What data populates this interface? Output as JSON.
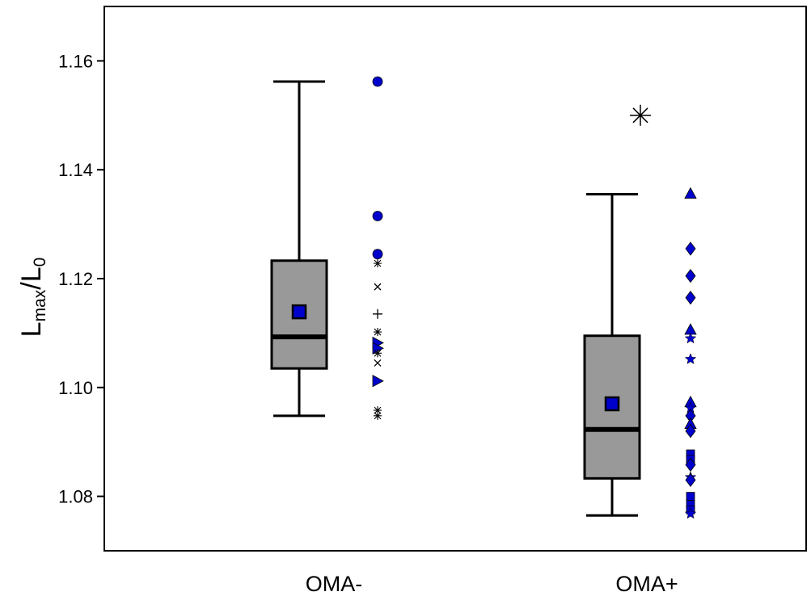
{
  "chart_data": {
    "type": "box",
    "ylabel": {
      "main": "L",
      "sub1": "max",
      "mid": "/L",
      "sub2": "0"
    },
    "ylim": [
      1.07,
      1.17
    ],
    "yticks": [
      1.08,
      1.1,
      1.12,
      1.14,
      1.16
    ],
    "ytick_labels": [
      "1.08",
      "1.10",
      "1.12",
      "1.14",
      "1.16"
    ],
    "grid": false,
    "legend": "none",
    "colors": {
      "box_fill": "#999999",
      "marker": "#0000cc",
      "line": "#000000"
    },
    "groups": [
      {
        "label": "OMA-",
        "whisker_low": 1.0948,
        "q1": 1.1035,
        "median": 1.1093,
        "q3": 1.1233,
        "whisker_high": 1.1562,
        "mean": 1.1139,
        "outliers": [],
        "points": [
          {
            "y": 1.1562,
            "marker": "circle"
          },
          {
            "y": 1.1315,
            "marker": "circle"
          },
          {
            "y": 1.1245,
            "marker": "circle"
          },
          {
            "y": 1.1228,
            "marker": "asterisk"
          },
          {
            "y": 1.1185,
            "marker": "cross"
          },
          {
            "y": 1.1135,
            "marker": "plus"
          },
          {
            "y": 1.1102,
            "marker": "asterisk"
          },
          {
            "y": 1.1082,
            "marker": "triangle-right"
          },
          {
            "y": 1.1072,
            "marker": "triangle-right"
          },
          {
            "y": 1.1063,
            "marker": "asterisk"
          },
          {
            "y": 1.1045,
            "marker": "cross"
          },
          {
            "y": 1.1012,
            "marker": "triangle-right"
          },
          {
            "y": 1.0958,
            "marker": "asterisk"
          },
          {
            "y": 1.0948,
            "marker": "asterisk"
          }
        ]
      },
      {
        "label": "OMA+",
        "whisker_low": 1.0765,
        "q1": 1.0833,
        "median": 1.0923,
        "q3": 1.1095,
        "whisker_high": 1.1355,
        "mean": 1.097,
        "outliers": [
          1.15
        ],
        "points": [
          {
            "y": 1.1355,
            "marker": "triangle-up"
          },
          {
            "y": 1.1255,
            "marker": "diamond"
          },
          {
            "y": 1.1205,
            "marker": "diamond"
          },
          {
            "y": 1.1165,
            "marker": "diamond"
          },
          {
            "y": 1.1105,
            "marker": "triangle-up"
          },
          {
            "y": 1.109,
            "marker": "star"
          },
          {
            "y": 1.1052,
            "marker": "star"
          },
          {
            "y": 1.0972,
            "marker": "triangle-up"
          },
          {
            "y": 1.0962,
            "marker": "star"
          },
          {
            "y": 1.0948,
            "marker": "diamond"
          },
          {
            "y": 1.0932,
            "marker": "triangle-up"
          },
          {
            "y": 1.092,
            "marker": "diamond"
          },
          {
            "y": 1.0878,
            "marker": "square"
          },
          {
            "y": 1.0868,
            "marker": "square"
          },
          {
            "y": 1.0858,
            "marker": "diamond"
          },
          {
            "y": 1.0835,
            "marker": "star"
          },
          {
            "y": 1.083,
            "marker": "diamond"
          },
          {
            "y": 1.08,
            "marker": "square"
          },
          {
            "y": 1.0785,
            "marker": "square"
          },
          {
            "y": 1.0775,
            "marker": "square"
          },
          {
            "y": 1.0768,
            "marker": "star"
          }
        ]
      }
    ]
  }
}
